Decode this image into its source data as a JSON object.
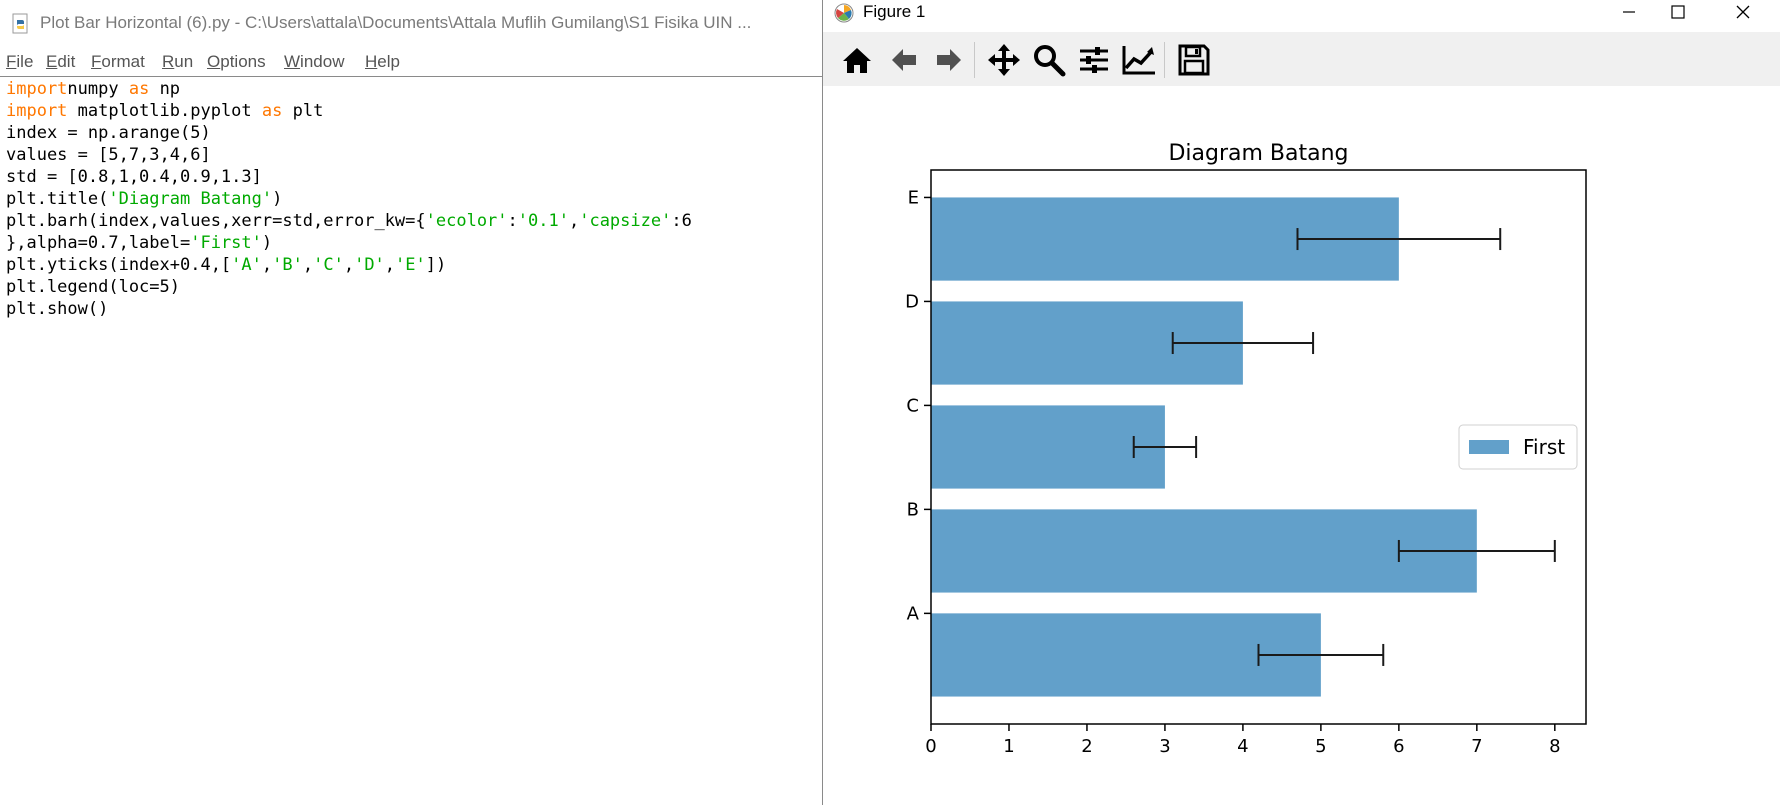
{
  "editor": {
    "title": "Plot Bar Horizontal (6).py - C:\\Users\\attala\\Documents\\Attala Muflih Gumilang\\S1 Fisika UIN ...",
    "menu": [
      {
        "u": "F",
        "rest": "ile"
      },
      {
        "u": "E",
        "rest": "dit"
      },
      {
        "u": "F",
        "rest": "ormat"
      },
      {
        "u": "R",
        "rest": "un"
      },
      {
        "u": "O",
        "rest": "ptions"
      },
      {
        "u": "W",
        "rest": "indow"
      },
      {
        "u": "H",
        "rest": "elp"
      }
    ],
    "code_lines": [
      [
        [
          "kw",
          "import"
        ],
        [
          "",
          "numpy "
        ],
        [
          "kw",
          "as"
        ],
        [
          "",
          " np"
        ]
      ],
      [
        [
          "kw",
          "import"
        ],
        [
          "",
          "",
          " matplotlib.pyplot "
        ],
        [
          "kw",
          "as"
        ],
        [
          "",
          " plt"
        ]
      ],
      [
        [
          "",
          "index = np.arange(5)"
        ]
      ],
      [
        [
          "",
          "values = [5,7,3,4,6]"
        ]
      ],
      [
        [
          "",
          "std = [0.8,1,0.4,0.9,1.3]"
        ]
      ],
      [
        [
          "",
          "plt.title("
        ],
        [
          "st",
          "'Diagram Batang'"
        ],
        [
          "",
          ")"
        ]
      ],
      [
        [
          "",
          "plt.barh(index,values,xerr=std,error_kw={"
        ],
        [
          "st",
          "'ecolor'"
        ],
        [
          "",
          ":"
        ],
        [
          "st",
          "'0.1'"
        ],
        [
          "",
          ","
        ],
        [
          "st",
          "'capsize'"
        ],
        [
          "",
          ":6"
        ]
      ],
      [
        [
          "",
          "},alpha=0.7,label="
        ],
        [
          "st",
          "'First'"
        ],
        [
          "",
          ")"
        ]
      ],
      [
        [
          "",
          "plt.yticks(index+0.4,["
        ],
        [
          "st",
          "'A'"
        ],
        [
          "",
          ","
        ],
        [
          "st",
          "'B'"
        ],
        [
          "",
          ","
        ],
        [
          "st",
          "'C'"
        ],
        [
          "",
          ","
        ],
        [
          "st",
          "'D'"
        ],
        [
          "",
          ","
        ],
        [
          "st",
          "'E'"
        ],
        [
          "",
          "])"
        ]
      ],
      [
        [
          "",
          "plt.legend(loc=5)"
        ]
      ],
      [
        [
          "",
          "plt.show()"
        ]
      ]
    ]
  },
  "figure": {
    "title": "Figure 1",
    "toolbar": [
      "home-icon",
      "back-arrow-icon",
      "forward-arrow-icon",
      "pan-icon",
      "zoom-icon",
      "configure-subplots-icon",
      "edit-axes-icon",
      "save-icon"
    ]
  },
  "chart_data": {
    "type": "bar",
    "orientation": "horizontal",
    "title": "Diagram Batang",
    "categories": [
      "A",
      "B",
      "C",
      "D",
      "E"
    ],
    "values": [
      5,
      7,
      3,
      4,
      6
    ],
    "errors": [
      0.8,
      1,
      0.4,
      0.9,
      1.3
    ],
    "xlim": [
      0,
      8.4
    ],
    "xticks": [
      0,
      1,
      2,
      3,
      4,
      5,
      6,
      7,
      8
    ],
    "bar_color": "#1f77b4",
    "bar_alpha": 0.7,
    "error_color": "#1a1a1a",
    "legend": {
      "label": "First",
      "position": "center-right"
    }
  }
}
